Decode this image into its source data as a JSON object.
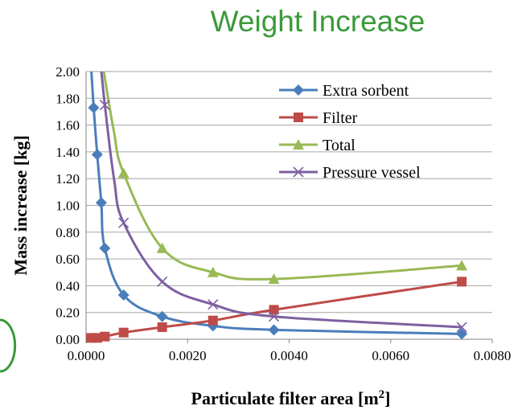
{
  "title": "Weight Increase",
  "chart_data": {
    "type": "line",
    "title": "Weight Increase",
    "xlabel": "Particulate filter area [m",
    "xlabel_sup": "2",
    "xlabel_end": "]",
    "ylabel": "Mass increase [kg]",
    "xlim": [
      0,
      0.008
    ],
    "ylim": [
      0,
      2.0
    ],
    "xticks": [
      "0.0000",
      "0.0020",
      "0.0040",
      "0.0060",
      "0.0080"
    ],
    "yticks": [
      "0.00",
      "0.20",
      "0.40",
      "0.60",
      "0.80",
      "1.00",
      "1.20",
      "1.40",
      "1.60",
      "1.80",
      "2.00"
    ],
    "grid": "horizontal",
    "legend_position": "top-right",
    "series": [
      {
        "name": "Extra sorbent",
        "color": "#4a7ebb",
        "marker": "diamond",
        "x": [
          0.00015,
          0.00022,
          0.0003,
          0.00037,
          0.00074,
          0.0015,
          0.0025,
          0.0037,
          0.0074
        ],
        "y": [
          1.73,
          1.38,
          1.02,
          0.68,
          0.33,
          0.17,
          0.1,
          0.07,
          0.04
        ]
      },
      {
        "name": "Filter",
        "color": "#be4b48",
        "marker": "square",
        "x": [
          0.0001,
          0.00022,
          0.0003,
          0.00037,
          0.00074,
          0.0015,
          0.0025,
          0.0037,
          0.0074
        ],
        "y": [
          0.01,
          0.01,
          0.02,
          0.02,
          0.05,
          0.09,
          0.14,
          0.22,
          0.43
        ],
        "marker_indices": [
          0,
          1,
          3,
          4,
          5,
          6,
          7,
          8
        ]
      },
      {
        "name": "Total",
        "color": "#98b954",
        "marker": "triangle",
        "x": [
          0.00035,
          0.0004,
          0.00055,
          0.00074,
          0.0015,
          0.0025,
          0.0037,
          0.0074
        ],
        "y": [
          2.0,
          1.88,
          1.55,
          1.24,
          0.68,
          0.5,
          0.45,
          0.55
        ],
        "marker_indices": [
          3,
          4,
          5,
          6,
          7
        ]
      },
      {
        "name": "Pressure vessel",
        "color": "#7d60a0",
        "marker": "x",
        "x": [
          0.0003,
          0.00037,
          0.00055,
          0.00074,
          0.0015,
          0.0025,
          0.0037,
          0.0074
        ],
        "y": [
          2.0,
          1.75,
          1.2,
          0.87,
          0.43,
          0.26,
          0.17,
          0.09
        ],
        "marker_indices": [
          1,
          3,
          4,
          5,
          6,
          7
        ]
      }
    ]
  }
}
